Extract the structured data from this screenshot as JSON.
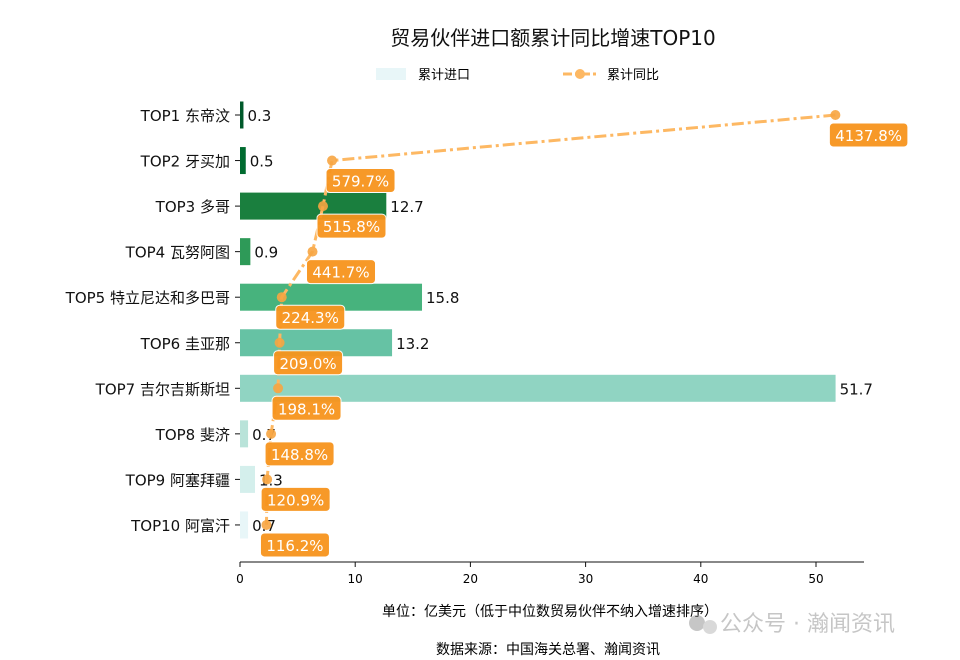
{
  "chart_data": {
    "type": "bar",
    "title": "贸易伙伴进口额累计同比增速TOP10",
    "legend": {
      "placement": "top-center",
      "bar_label": "累计进口",
      "line_label": "累计同比"
    },
    "categories": [
      "TOP1 东帝汶",
      "TOP2 牙买加",
      "TOP3 多哥",
      "TOP4 瓦努阿图",
      "TOP5 特立尼达和多巴哥",
      "TOP6 圭亚那",
      "TOP7 吉尔吉斯斯坦",
      "TOP8 斐济",
      "TOP9 阿塞拜疆",
      "TOP10 阿富汗"
    ],
    "series": [
      {
        "name": "累计进口",
        "type": "bar",
        "values": [
          0.3,
          0.5,
          12.7,
          0.9,
          15.8,
          13.2,
          51.7,
          0.7,
          1.3,
          0.7
        ],
        "labels": [
          "0.3",
          "0.5",
          "12.7",
          "0.9",
          "15.8",
          "13.2",
          "51.7",
          "0.7",
          "1.3",
          "0.7"
        ]
      },
      {
        "name": "累计同比",
        "type": "line",
        "values": [
          4137.8,
          579.7,
          515.8,
          441.7,
          224.3,
          209.0,
          198.1,
          148.8,
          120.9,
          116.2
        ],
        "labels": [
          "4137.8%",
          "579.7%",
          "515.8%",
          "441.7%",
          "224.3%",
          "209.0%",
          "198.1%",
          "148.8%",
          "120.9%",
          "116.2%"
        ]
      }
    ],
    "xticks": [
      "0",
      "10",
      "20",
      "30",
      "40",
      "50"
    ],
    "xlim": [
      0,
      54.5
    ],
    "xlabel": "单位：亿美元（低于中位数贸易伙伴不纳入增速排序）",
    "source": "数据来源：中国海关总署、瀚闻资讯",
    "watermark": "公众号 · 瀚闻资讯",
    "grid": false,
    "colors": {
      "bars": [
        "#00592a",
        "#006b30",
        "#1a7f3e",
        "#2e9a58",
        "#47b37d",
        "#66c2a4",
        "#90d4c2",
        "#b9e3d9",
        "#d4efec",
        "#e8f6f8"
      ],
      "line": "#fdb863",
      "label_bg": "#f7941d"
    }
  }
}
